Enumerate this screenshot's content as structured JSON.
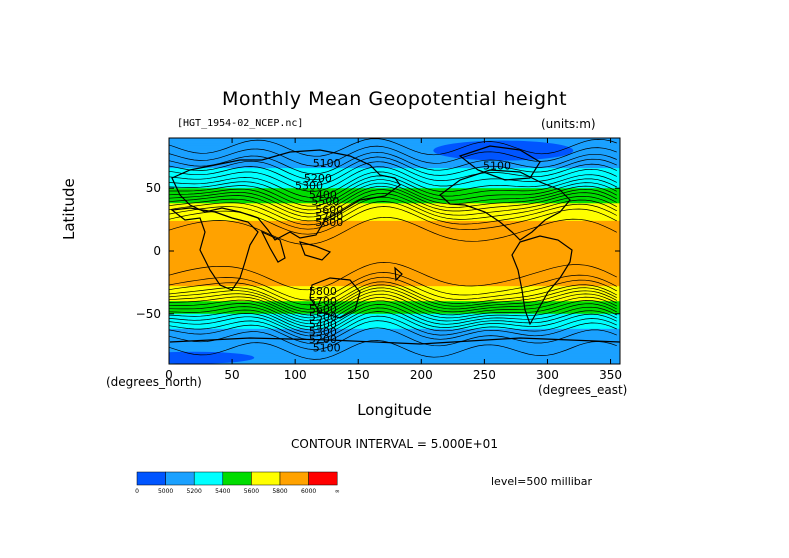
{
  "chart_data": {
    "type": "contour-map",
    "title": "Monthly Mean Geopotential height",
    "file_label": "[HGT_1954-02_NCEP.nc]",
    "units_label": "(units:m)",
    "xlabel": "Longitude",
    "ylabel": "Latitude",
    "x_unit": "(degrees_east)",
    "y_unit": "(degrees_north)",
    "xlim": [
      0,
      357.5
    ],
    "ylim": [
      -90,
      90
    ],
    "x_ticks": [
      0,
      50,
      100,
      150,
      200,
      250,
      300,
      350
    ],
    "y_ticks": [
      -50,
      0,
      50
    ],
    "contour_interval_text": "CONTOUR INTERVAL = 5.000E+01",
    "level_text": "level=500 millibar",
    "colorbar": {
      "colors": [
        "#0055ff",
        "#1ba1ff",
        "#00ffff",
        "#00dd00",
        "#ffff00",
        "#ffa200",
        "#ff0000"
      ],
      "boundaries": [
        "0",
        "5000",
        "5200",
        "5400",
        "5600",
        "5800",
        "6000",
        "∞"
      ]
    },
    "contour_labels": [
      {
        "text": "5100",
        "lon": 125,
        "lat": 70
      },
      {
        "text": "5200",
        "lon": 118,
        "lat": 58
      },
      {
        "text": "5300",
        "lon": 111,
        "lat": 52
      },
      {
        "text": "5400",
        "lon": 122,
        "lat": 45
      },
      {
        "text": "5500",
        "lon": 124,
        "lat": 40
      },
      {
        "text": "5600",
        "lon": 127,
        "lat": 33
      },
      {
        "text": "5700",
        "lon": 127,
        "lat": 28
      },
      {
        "text": "5800",
        "lon": 127,
        "lat": 23
      },
      {
        "text": "5100",
        "lon": 260,
        "lat": 68
      },
      {
        "text": "5800",
        "lon": 122,
        "lat": -32
      },
      {
        "text": "5700",
        "lon": 122,
        "lat": -40
      },
      {
        "text": "5600",
        "lon": 122,
        "lat": -46
      },
      {
        "text": "5500",
        "lon": 122,
        "lat": -52
      },
      {
        "text": "5400",
        "lon": 122,
        "lat": -58
      },
      {
        "text": "5300",
        "lon": 122,
        "lat": -64
      },
      {
        "text": "5200",
        "lon": 122,
        "lat": -70
      },
      {
        "text": "5100",
        "lon": 125,
        "lat": -77
      }
    ],
    "zonal_profile": [
      {
        "lat": 90,
        "value": 5020
      },
      {
        "lat": 80,
        "value": 5060
      },
      {
        "lat": 70,
        "value": 5150
      },
      {
        "lat": 60,
        "value": 5270
      },
      {
        "lat": 52,
        "value": 5360
      },
      {
        "lat": 45,
        "value": 5470
      },
      {
        "lat": 38,
        "value": 5600
      },
      {
        "lat": 30,
        "value": 5730
      },
      {
        "lat": 22,
        "value": 5830
      },
      {
        "lat": 10,
        "value": 5870
      },
      {
        "lat": 0,
        "value": 5870
      },
      {
        "lat": -10,
        "value": 5870
      },
      {
        "lat": -25,
        "value": 5840
      },
      {
        "lat": -35,
        "value": 5710
      },
      {
        "lat": -42,
        "value": 5560
      },
      {
        "lat": -50,
        "value": 5400
      },
      {
        "lat": -58,
        "value": 5250
      },
      {
        "lat": -66,
        "value": 5130
      },
      {
        "lat": -75,
        "value": 5060
      },
      {
        "lat": -90,
        "value": 5020
      }
    ]
  }
}
